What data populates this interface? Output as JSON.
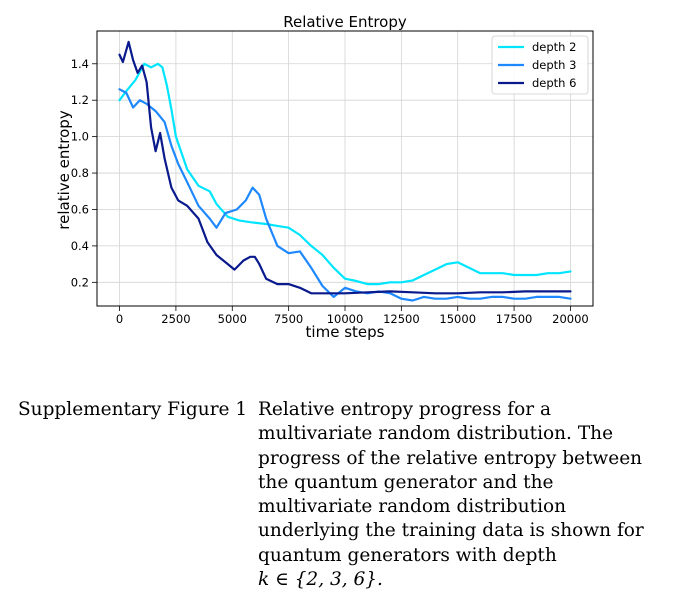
{
  "chart_data": {
    "type": "line",
    "title": "Relative Entropy",
    "xlabel": "time steps",
    "ylabel": "relative entropy",
    "xlim": [
      -1000,
      21000
    ],
    "ylim": [
      0.07,
      1.58
    ],
    "xticks": [
      0,
      2500,
      5000,
      7500,
      10000,
      12500,
      15000,
      17500,
      20000
    ],
    "xtick_labels": [
      "0",
      "2500",
      "5000",
      "7500",
      "10000",
      "12500",
      "15000",
      "17500",
      "20000"
    ],
    "yticks": [
      0.2,
      0.4,
      0.6,
      0.8,
      1.0,
      1.2,
      1.4
    ],
    "ytick_labels": [
      "0.2",
      "0.4",
      "0.6",
      "0.8",
      "1.0",
      "1.2",
      "1.4"
    ],
    "grid": true,
    "legend_position": "top-right",
    "series": [
      {
        "name": "depth 2",
        "color": "#00e5ff",
        "x": [
          0,
          300,
          700,
          1100,
          1400,
          1700,
          1900,
          2100,
          2300,
          2500,
          3000,
          3500,
          4000,
          4300,
          4800,
          5300,
          5800,
          6500,
          7000,
          7500,
          8000,
          8500,
          9000,
          9500,
          10000,
          10400,
          11000,
          11500,
          12000,
          12500,
          13000,
          13500,
          14000,
          14500,
          15000,
          15500,
          16000,
          16500,
          17000,
          17500,
          18000,
          18500,
          19000,
          19500,
          20000
        ],
        "y": [
          1.2,
          1.25,
          1.31,
          1.4,
          1.38,
          1.4,
          1.38,
          1.28,
          1.15,
          1.0,
          0.82,
          0.73,
          0.7,
          0.63,
          0.56,
          0.54,
          0.53,
          0.52,
          0.51,
          0.5,
          0.46,
          0.4,
          0.35,
          0.28,
          0.22,
          0.21,
          0.19,
          0.19,
          0.2,
          0.2,
          0.21,
          0.24,
          0.27,
          0.3,
          0.31,
          0.28,
          0.25,
          0.25,
          0.25,
          0.24,
          0.24,
          0.24,
          0.25,
          0.25,
          0.26
        ]
      },
      {
        "name": "depth 3",
        "color": "#1e88ff",
        "x": [
          0,
          300,
          600,
          900,
          1200,
          1600,
          2000,
          2300,
          2600,
          3000,
          3500,
          4000,
          4300,
          4700,
          5200,
          5600,
          5900,
          6200,
          6500,
          7000,
          7500,
          8000,
          8500,
          9000,
          9500,
          10000,
          10500,
          11000,
          11500,
          12000,
          12500,
          13000,
          13500,
          14000,
          14500,
          15000,
          15500,
          16000,
          16500,
          17000,
          17500,
          18000,
          18500,
          19000,
          19500,
          20000
        ],
        "y": [
          1.26,
          1.24,
          1.16,
          1.2,
          1.18,
          1.14,
          1.08,
          0.95,
          0.85,
          0.75,
          0.62,
          0.55,
          0.5,
          0.58,
          0.6,
          0.65,
          0.72,
          0.68,
          0.55,
          0.4,
          0.36,
          0.37,
          0.28,
          0.18,
          0.12,
          0.17,
          0.15,
          0.14,
          0.15,
          0.14,
          0.11,
          0.1,
          0.12,
          0.11,
          0.11,
          0.12,
          0.11,
          0.11,
          0.12,
          0.12,
          0.11,
          0.11,
          0.12,
          0.12,
          0.12,
          0.11
        ]
      },
      {
        "name": "depth 6",
        "color": "#0a1a8c",
        "x": [
          0,
          150,
          400,
          600,
          800,
          1000,
          1200,
          1400,
          1600,
          1800,
          2000,
          2300,
          2600,
          3000,
          3500,
          3900,
          4300,
          4800,
          5100,
          5500,
          5800,
          6000,
          6200,
          6500,
          7000,
          7500,
          8000,
          8500,
          9000,
          9500,
          10000,
          11000,
          12000,
          13000,
          14000,
          15000,
          16000,
          17000,
          18000,
          19000,
          20000
        ],
        "y": [
          1.45,
          1.41,
          1.52,
          1.42,
          1.35,
          1.39,
          1.3,
          1.05,
          0.92,
          1.02,
          0.88,
          0.72,
          0.65,
          0.62,
          0.55,
          0.42,
          0.35,
          0.3,
          0.27,
          0.32,
          0.34,
          0.34,
          0.3,
          0.22,
          0.19,
          0.19,
          0.17,
          0.14,
          0.14,
          0.14,
          0.14,
          0.145,
          0.15,
          0.145,
          0.14,
          0.14,
          0.145,
          0.145,
          0.15,
          0.15,
          0.15
        ]
      }
    ]
  },
  "caption": {
    "label": "Supplementary Figure 1",
    "lines": [
      "Relative entropy progress for a",
      "multivariate random distribution. The",
      "progress of the relative entropy between",
      "the quantum generator and the",
      "multivariate random distribution",
      "underlying the training data is shown for",
      "quantum generators with depth"
    ],
    "math": "k ∈ {2, 3, 6}."
  }
}
